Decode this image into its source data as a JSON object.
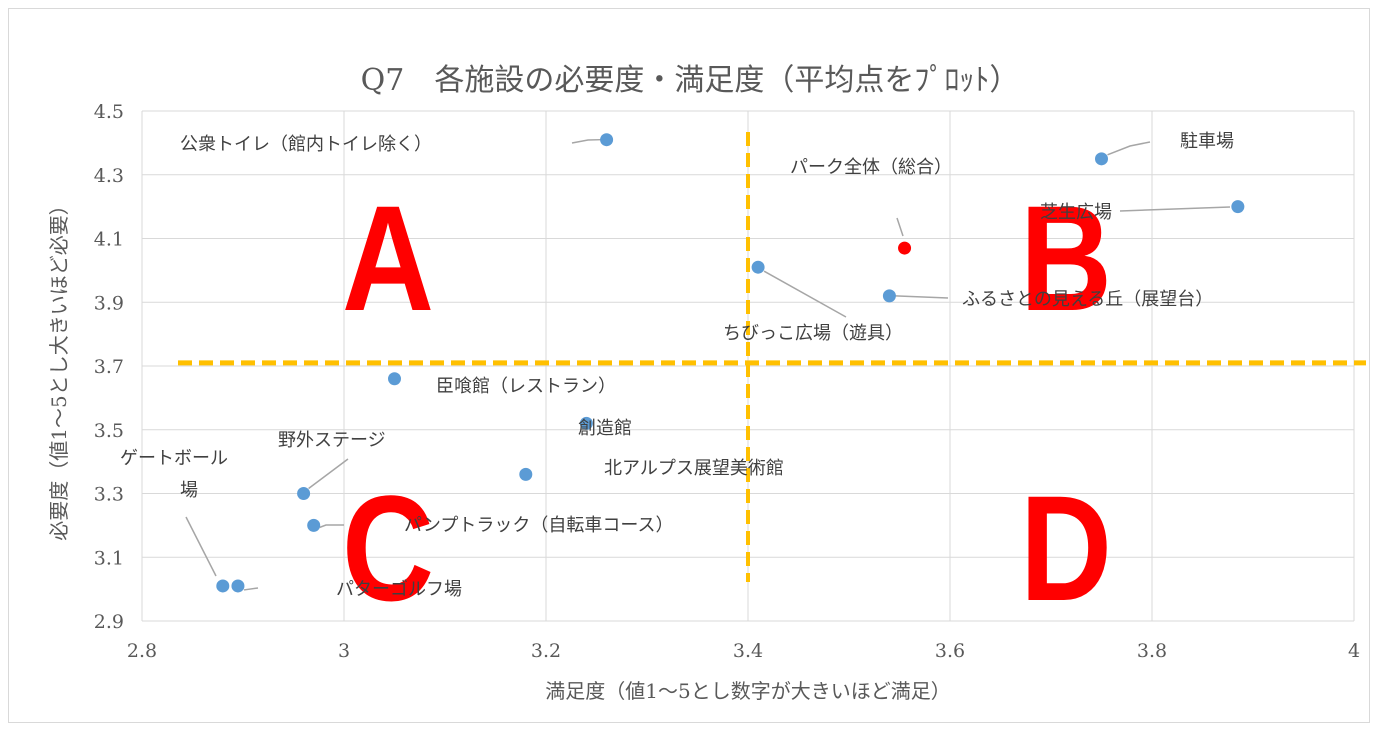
{
  "chart_data": {
    "type": "scatter",
    "title": "Q7　各施設の必要度・満足度（平均点をﾌﾟﾛｯﾄ）",
    "xlabel": "満足度（値1〜5とし数字が大きいほど満足）",
    "ylabel": "必要度（値1〜5とし大きいほど必要）",
    "xlim": [
      2.8,
      4.0
    ],
    "ylim": [
      2.9,
      4.5
    ],
    "x_ticks": [
      "2.8",
      "3",
      "3.2",
      "3.4",
      "3.6",
      "3.8",
      "4"
    ],
    "y_ticks": [
      "2.9",
      "3.1",
      "3.3",
      "3.5",
      "3.7",
      "3.9",
      "4.1",
      "4.3",
      "4.5"
    ],
    "grid": true,
    "thresholds": {
      "x": 3.4,
      "y": 3.71
    },
    "quadrants": [
      "A",
      "B",
      "C",
      "D"
    ],
    "points": [
      {
        "label": "公衆トイレ（館内トイレ除く）",
        "x": 3.26,
        "y": 4.41,
        "color": "#5b9bd5"
      },
      {
        "label": "駐車場",
        "x": 3.75,
        "y": 4.35,
        "color": "#5b9bd5"
      },
      {
        "label": "芝生広場",
        "x": 3.885,
        "y": 4.2,
        "color": "#5b9bd5"
      },
      {
        "label": "パーク全体（総合）",
        "x": 3.555,
        "y": 4.07,
        "color": "#ff0000"
      },
      {
        "label": "ちびっこ広場（遊具）",
        "x": 3.41,
        "y": 4.01,
        "color": "#5b9bd5"
      },
      {
        "label": "ふるさとの見える丘（展望台）",
        "x": 3.54,
        "y": 3.92,
        "color": "#5b9bd5"
      },
      {
        "label": "臣喰館（レストラン）",
        "x": 3.05,
        "y": 3.66,
        "color": "#5b9bd5"
      },
      {
        "label": "創造館",
        "x": 3.24,
        "y": 3.52,
        "color": "#5b9bd5"
      },
      {
        "label": "北アルプス展望美術館",
        "x": 3.18,
        "y": 3.36,
        "color": "#5b9bd5"
      },
      {
        "label": "野外ステージ",
        "x": 2.96,
        "y": 3.3,
        "color": "#5b9bd5"
      },
      {
        "label": "パンプトラック（自転車コース）",
        "x": 2.97,
        "y": 3.2,
        "color": "#5b9bd5"
      },
      {
        "label": "ゲートボール",
        "label2": "場",
        "x": 2.88,
        "y": 3.01,
        "color": "#5b9bd5"
      },
      {
        "label": "パターゴルフ場",
        "x": 2.895,
        "y": 3.01,
        "color": "#5b9bd5"
      }
    ],
    "threshold_color": "#ffc000",
    "quadrant_color": "#ff0000"
  }
}
